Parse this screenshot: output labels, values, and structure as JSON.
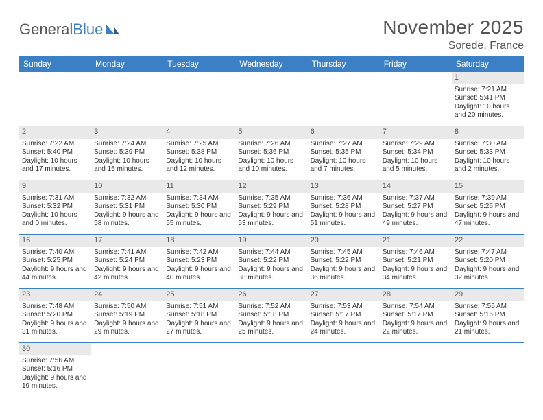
{
  "brand": {
    "part1": "General",
    "part2": "Blue"
  },
  "title": "November 2025",
  "location": "Sorede, France",
  "colors": {
    "accent": "#3b7fc4",
    "header_bg": "#e9e9e9",
    "text": "#333333",
    "muted": "#555555",
    "bg": "#ffffff"
  },
  "dow": [
    "Sunday",
    "Monday",
    "Tuesday",
    "Wednesday",
    "Thursday",
    "Friday",
    "Saturday"
  ],
  "weeks": [
    [
      null,
      null,
      null,
      null,
      null,
      null,
      {
        "n": "1",
        "sr": "Sunrise: 7:21 AM",
        "ss": "Sunset: 5:41 PM",
        "dl": "Daylight: 10 hours and 20 minutes."
      }
    ],
    [
      {
        "n": "2",
        "sr": "Sunrise: 7:22 AM",
        "ss": "Sunset: 5:40 PM",
        "dl": "Daylight: 10 hours and 17 minutes."
      },
      {
        "n": "3",
        "sr": "Sunrise: 7:24 AM",
        "ss": "Sunset: 5:39 PM",
        "dl": "Daylight: 10 hours and 15 minutes."
      },
      {
        "n": "4",
        "sr": "Sunrise: 7:25 AM",
        "ss": "Sunset: 5:38 PM",
        "dl": "Daylight: 10 hours and 12 minutes."
      },
      {
        "n": "5",
        "sr": "Sunrise: 7:26 AM",
        "ss": "Sunset: 5:36 PM",
        "dl": "Daylight: 10 hours and 10 minutes."
      },
      {
        "n": "6",
        "sr": "Sunrise: 7:27 AM",
        "ss": "Sunset: 5:35 PM",
        "dl": "Daylight: 10 hours and 7 minutes."
      },
      {
        "n": "7",
        "sr": "Sunrise: 7:29 AM",
        "ss": "Sunset: 5:34 PM",
        "dl": "Daylight: 10 hours and 5 minutes."
      },
      {
        "n": "8",
        "sr": "Sunrise: 7:30 AM",
        "ss": "Sunset: 5:33 PM",
        "dl": "Daylight: 10 hours and 2 minutes."
      }
    ],
    [
      {
        "n": "9",
        "sr": "Sunrise: 7:31 AM",
        "ss": "Sunset: 5:32 PM",
        "dl": "Daylight: 10 hours and 0 minutes."
      },
      {
        "n": "10",
        "sr": "Sunrise: 7:32 AM",
        "ss": "Sunset: 5:31 PM",
        "dl": "Daylight: 9 hours and 58 minutes."
      },
      {
        "n": "11",
        "sr": "Sunrise: 7:34 AM",
        "ss": "Sunset: 5:30 PM",
        "dl": "Daylight: 9 hours and 55 minutes."
      },
      {
        "n": "12",
        "sr": "Sunrise: 7:35 AM",
        "ss": "Sunset: 5:29 PM",
        "dl": "Daylight: 9 hours and 53 minutes."
      },
      {
        "n": "13",
        "sr": "Sunrise: 7:36 AM",
        "ss": "Sunset: 5:28 PM",
        "dl": "Daylight: 9 hours and 51 minutes."
      },
      {
        "n": "14",
        "sr": "Sunrise: 7:37 AM",
        "ss": "Sunset: 5:27 PM",
        "dl": "Daylight: 9 hours and 49 minutes."
      },
      {
        "n": "15",
        "sr": "Sunrise: 7:39 AM",
        "ss": "Sunset: 5:26 PM",
        "dl": "Daylight: 9 hours and 47 minutes."
      }
    ],
    [
      {
        "n": "16",
        "sr": "Sunrise: 7:40 AM",
        "ss": "Sunset: 5:25 PM",
        "dl": "Daylight: 9 hours and 44 minutes."
      },
      {
        "n": "17",
        "sr": "Sunrise: 7:41 AM",
        "ss": "Sunset: 5:24 PM",
        "dl": "Daylight: 9 hours and 42 minutes."
      },
      {
        "n": "18",
        "sr": "Sunrise: 7:42 AM",
        "ss": "Sunset: 5:23 PM",
        "dl": "Daylight: 9 hours and 40 minutes."
      },
      {
        "n": "19",
        "sr": "Sunrise: 7:44 AM",
        "ss": "Sunset: 5:22 PM",
        "dl": "Daylight: 9 hours and 38 minutes."
      },
      {
        "n": "20",
        "sr": "Sunrise: 7:45 AM",
        "ss": "Sunset: 5:22 PM",
        "dl": "Daylight: 9 hours and 36 minutes."
      },
      {
        "n": "21",
        "sr": "Sunrise: 7:46 AM",
        "ss": "Sunset: 5:21 PM",
        "dl": "Daylight: 9 hours and 34 minutes."
      },
      {
        "n": "22",
        "sr": "Sunrise: 7:47 AM",
        "ss": "Sunset: 5:20 PM",
        "dl": "Daylight: 9 hours and 32 minutes."
      }
    ],
    [
      {
        "n": "23",
        "sr": "Sunrise: 7:48 AM",
        "ss": "Sunset: 5:20 PM",
        "dl": "Daylight: 9 hours and 31 minutes."
      },
      {
        "n": "24",
        "sr": "Sunrise: 7:50 AM",
        "ss": "Sunset: 5:19 PM",
        "dl": "Daylight: 9 hours and 29 minutes."
      },
      {
        "n": "25",
        "sr": "Sunrise: 7:51 AM",
        "ss": "Sunset: 5:18 PM",
        "dl": "Daylight: 9 hours and 27 minutes."
      },
      {
        "n": "26",
        "sr": "Sunrise: 7:52 AM",
        "ss": "Sunset: 5:18 PM",
        "dl": "Daylight: 9 hours and 25 minutes."
      },
      {
        "n": "27",
        "sr": "Sunrise: 7:53 AM",
        "ss": "Sunset: 5:17 PM",
        "dl": "Daylight: 9 hours and 24 minutes."
      },
      {
        "n": "28",
        "sr": "Sunrise: 7:54 AM",
        "ss": "Sunset: 5:17 PM",
        "dl": "Daylight: 9 hours and 22 minutes."
      },
      {
        "n": "29",
        "sr": "Sunrise: 7:55 AM",
        "ss": "Sunset: 5:16 PM",
        "dl": "Daylight: 9 hours and 21 minutes."
      }
    ],
    [
      {
        "n": "30",
        "sr": "Sunrise: 7:56 AM",
        "ss": "Sunset: 5:16 PM",
        "dl": "Daylight: 9 hours and 19 minutes."
      },
      null,
      null,
      null,
      null,
      null,
      null
    ]
  ]
}
